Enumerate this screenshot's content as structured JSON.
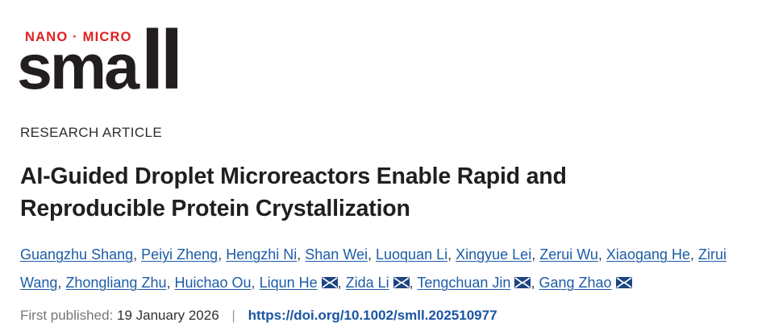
{
  "logo": {
    "tagline": "NANO · MICRO",
    "word_start": "sma",
    "word_end": "ll"
  },
  "article": {
    "type_label": "RESEARCH ARTICLE",
    "title_line1": "AI-Guided Droplet Microreactors Enable Rapid and",
    "title_line2": "Reproducible Protein Crystallization"
  },
  "authors": {
    "separator": ", ",
    "list": [
      {
        "name": "Guangzhu Shang",
        "email": false
      },
      {
        "name": "Peiyi Zheng",
        "email": false
      },
      {
        "name": "Hengzhi Ni",
        "email": false
      },
      {
        "name": "Shan Wei",
        "email": false
      },
      {
        "name": "Luoquan Li",
        "email": false
      },
      {
        "name": "Xingyue Lei",
        "email": false
      },
      {
        "name": "Zerui Wu",
        "email": false
      },
      {
        "name": "Xiaogang He",
        "email": false
      },
      {
        "name": "Zirui Wang",
        "email": false
      },
      {
        "name": "Zhongliang Zhu",
        "email": false
      },
      {
        "name": "Huichao Ou",
        "email": false
      },
      {
        "name": "Liqun He",
        "email": true
      },
      {
        "name": "Zida Li",
        "email": true
      },
      {
        "name": "Tengchuan Jin",
        "email": true
      },
      {
        "name": "Gang Zhao",
        "email": true
      }
    ]
  },
  "published": {
    "label": "First published:",
    "date": "19 January 2026",
    "separator": "|",
    "doi": "https://doi.org/10.1002/smll.202510977"
  },
  "colors": {
    "brand_red": "#e02020",
    "logo_black": "#221e1f",
    "link_blue": "#1d5ca6",
    "doi_blue": "#1a55a5",
    "envelope_navy": "#1c4481"
  },
  "icons": {
    "email": "envelope-icon"
  }
}
